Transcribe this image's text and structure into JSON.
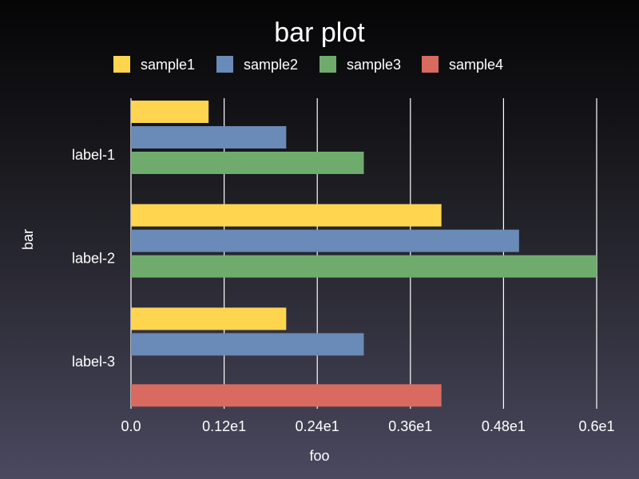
{
  "chart_data": {
    "type": "bar",
    "orientation": "horizontal",
    "title": "bar plot",
    "xlabel": "foo",
    "ylabel": "bar",
    "categories": [
      "label-1",
      "label-2",
      "label-3"
    ],
    "series": [
      {
        "name": "sample1",
        "color": "#ffd54f",
        "values": [
          1.0,
          4.0,
          2.0
        ]
      },
      {
        "name": "sample2",
        "color": "#6a8ab8",
        "values": [
          2.0,
          5.0,
          3.0
        ]
      },
      {
        "name": "sample3",
        "color": "#6fab6c",
        "values": [
          3.0,
          6.0,
          null
        ]
      },
      {
        "name": "sample4",
        "color": "#d86a60",
        "values": [
          null,
          null,
          4.0
        ]
      }
    ],
    "xticks": [
      0,
      1.2,
      2.4,
      3.6,
      4.8,
      6.0
    ],
    "xtick_labels": [
      "0.0",
      "0.12e1",
      "0.24e1",
      "0.36e1",
      "0.48e1",
      "0.6e1"
    ],
    "xlim": [
      0,
      6.0
    ],
    "grid": "vertical",
    "legend": "top"
  }
}
